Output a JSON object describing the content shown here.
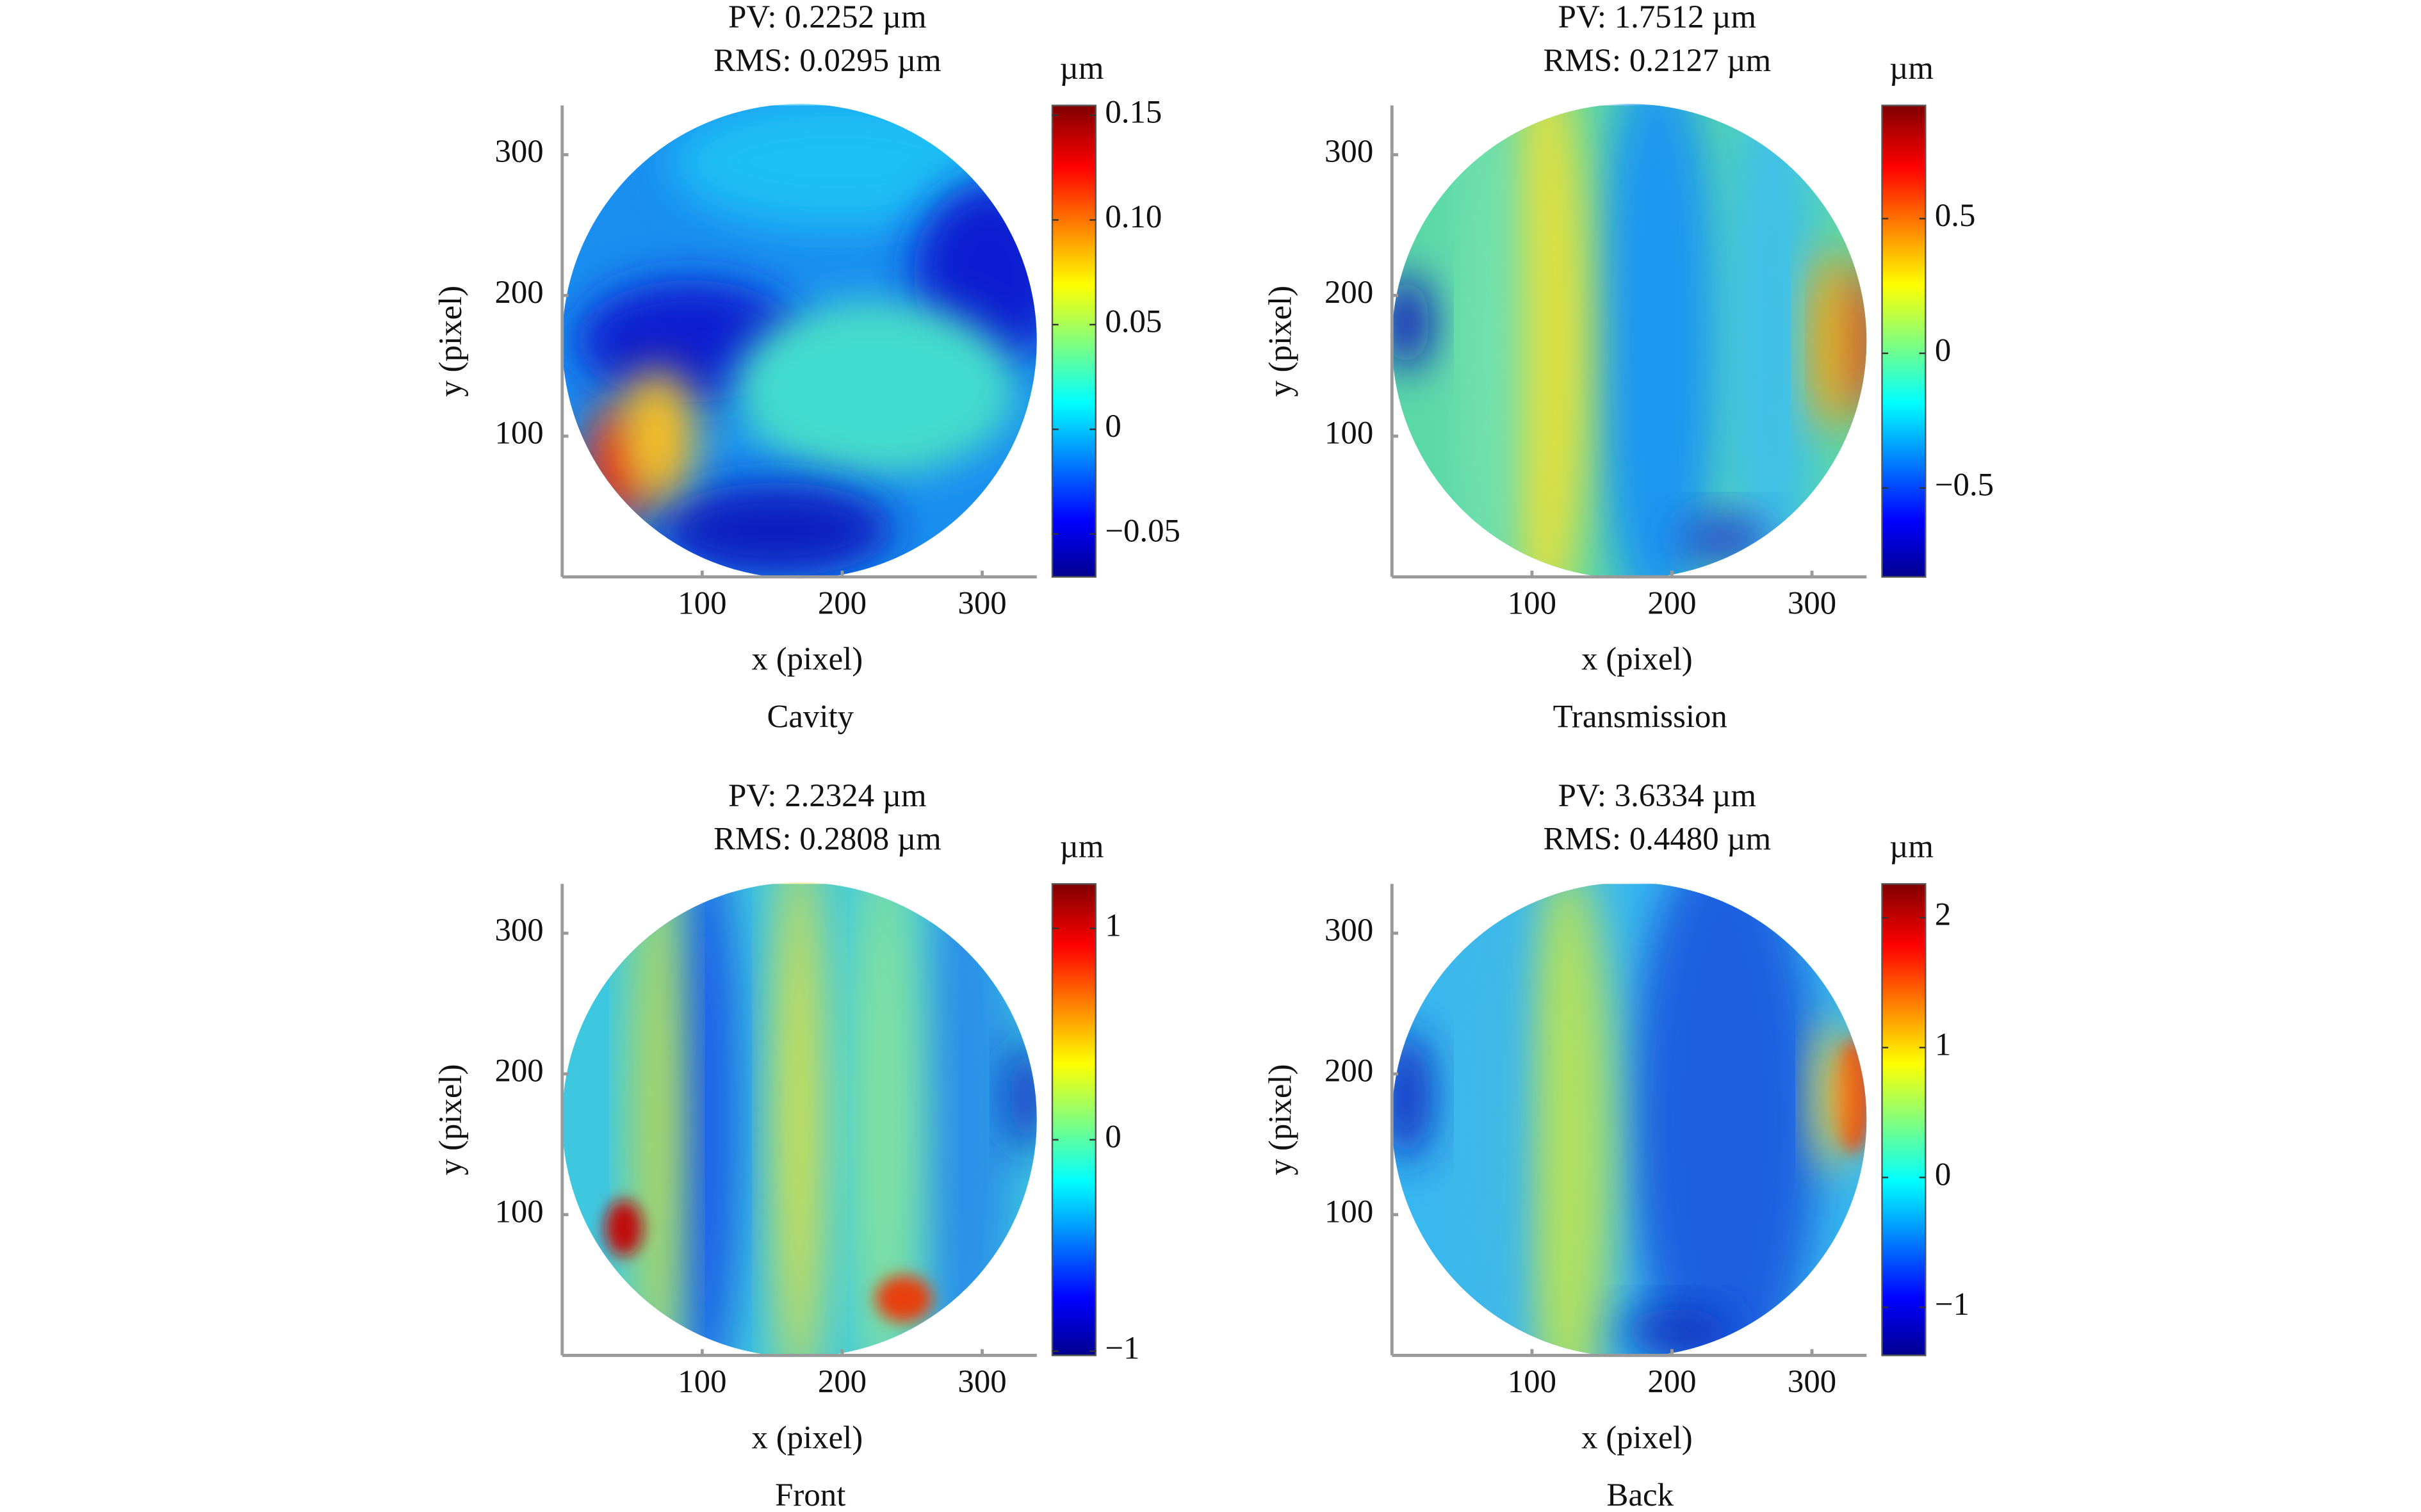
{
  "chart_data": [
    {
      "type": "heatmap",
      "title": "PV: 0.2252 µm",
      "subtitle": "RMS: 0.0295 µm",
      "caption": "Cavity",
      "xlabel": "x (pixel)",
      "ylabel": "y (pixel)",
      "xlim": [
        0,
        339
      ],
      "ylim": [
        0,
        335
      ],
      "xticks": [
        100,
        200,
        300
      ],
      "yticks": [
        100,
        200,
        300
      ],
      "colormap": "jet",
      "colorbar": {
        "label": "µm",
        "lim": [
          -0.0705,
          0.1547
        ],
        "ticks": [
          {
            "value": -0.05,
            "label": "−0.05"
          },
          0,
          0.05,
          {
            "value": 0.1,
            "label": "0.10"
          },
          0.15
        ]
      }
    },
    {
      "type": "heatmap",
      "title": "PV: 1.7512 µm",
      "subtitle": "RMS: 0.2127 µm",
      "caption": "Transmission",
      "xlabel": "x (pixel)",
      "ylabel": "y (pixel)",
      "xlim": [
        0,
        339
      ],
      "ylim": [
        0,
        335
      ],
      "xticks": [
        100,
        200,
        300
      ],
      "yticks": [
        100,
        200,
        300
      ],
      "colormap": "jet",
      "colorbar": {
        "label": "µm",
        "lim": [
          -0.83,
          0.92
        ],
        "ticks": [
          {
            "value": -0.5,
            "label": "−0.5"
          },
          0,
          0.5
        ]
      }
    },
    {
      "type": "heatmap",
      "title": "PV: 2.2324 µm",
      "subtitle": "RMS: 0.2808 µm",
      "caption": "Front",
      "xlabel": "x (pixel)",
      "ylabel": "y (pixel)",
      "xlim": [
        0,
        339
      ],
      "ylim": [
        0,
        335
      ],
      "xticks": [
        100,
        200,
        300
      ],
      "yticks": [
        100,
        200,
        300
      ],
      "colormap": "jet",
      "colorbar": {
        "label": "µm",
        "lim": [
          -1.02,
          1.21
        ],
        "ticks": [
          {
            "value": -1,
            "label": "−1"
          },
          0,
          1
        ]
      }
    },
    {
      "type": "heatmap",
      "title": "PV: 3.6334 µm",
      "subtitle": "RMS: 0.4480 µm",
      "caption": "Back",
      "xlabel": "x (pixel)",
      "ylabel": "y (pixel)",
      "xlim": [
        0,
        339
      ],
      "ylim": [
        0,
        335
      ],
      "xticks": [
        100,
        200,
        300
      ],
      "yticks": [
        100,
        200,
        300
      ],
      "colormap": "jet",
      "colorbar": {
        "label": "µm",
        "lim": [
          -1.37,
          2.26
        ],
        "ticks": [
          {
            "value": -1,
            "label": "−1"
          },
          0,
          1,
          2
        ]
      }
    }
  ]
}
